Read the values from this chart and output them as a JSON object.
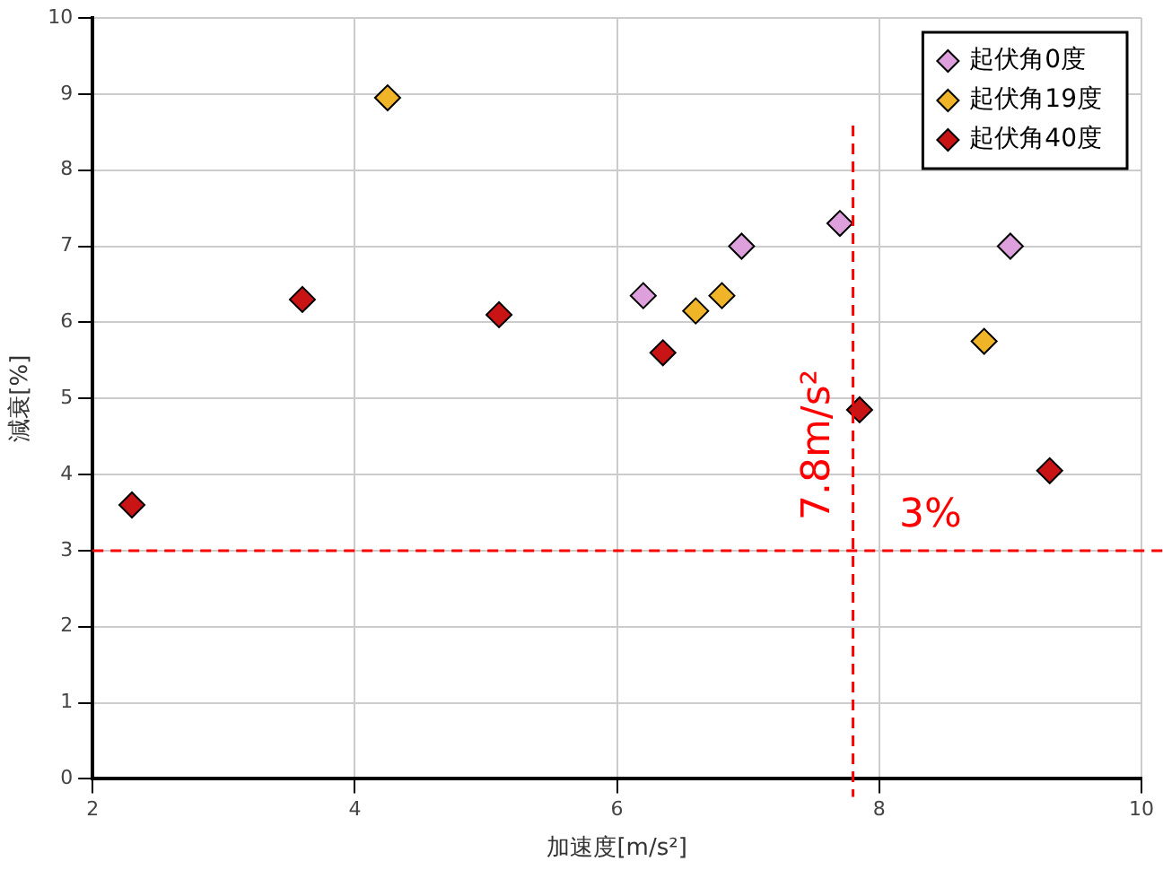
{
  "chart_data": {
    "type": "scatter",
    "xlabel": "加速度[m/s²]",
    "ylabel": "減衰[%]",
    "xlim": [
      2,
      10
    ],
    "xticks": [
      2,
      4,
      6,
      8,
      10
    ],
    "ylim": [
      0,
      10
    ],
    "yticks": [
      0,
      1,
      2,
      3,
      4,
      5,
      6,
      7,
      8,
      9,
      10
    ],
    "grid": true,
    "legend": "top right",
    "marker": "diamond",
    "series": [
      {
        "name": "起伏角0度",
        "color": "#dda0dd",
        "x": [
          6.2,
          6.95,
          7.7,
          9.0
        ],
        "values": [
          6.35,
          7.0,
          7.3,
          7.0
        ]
      },
      {
        "name": "起伏角19度",
        "color": "#f0b429",
        "x": [
          4.25,
          6.6,
          6.8,
          8.8
        ],
        "values": [
          8.95,
          6.15,
          6.35,
          5.75
        ]
      },
      {
        "name": "起伏角40度",
        "color": "#c81414",
        "x": [
          2.3,
          3.6,
          5.1,
          6.35,
          7.85,
          9.3
        ],
        "values": [
          3.6,
          6.3,
          6.1,
          5.6,
          4.85,
          4.05
        ]
      }
    ],
    "ref_lines": [
      {
        "axis": "x",
        "value": 7.8,
        "label": "7.8m/s²",
        "color": "#ff0000",
        "line_style": "dashed"
      },
      {
        "axis": "y",
        "value": 3,
        "label": "3%",
        "color": "#ff0000",
        "line_style": "dashed"
      }
    ]
  }
}
